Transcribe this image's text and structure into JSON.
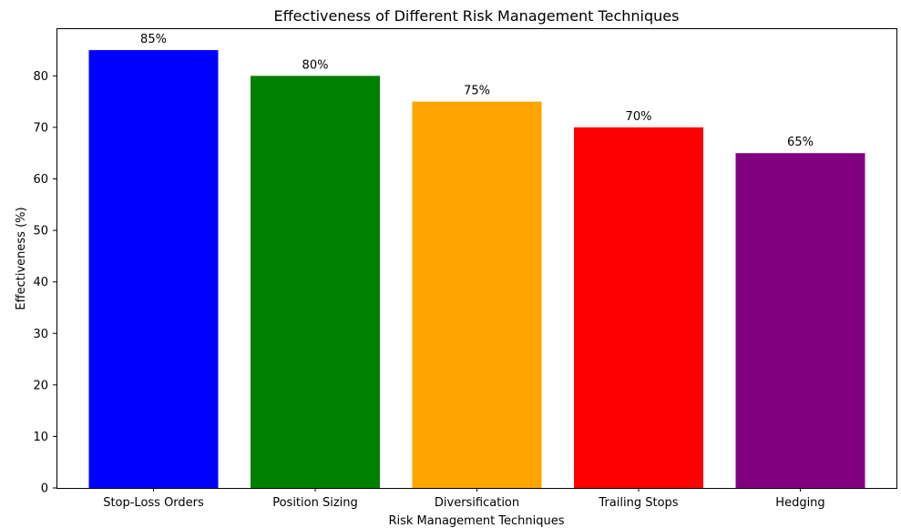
{
  "chart_data": {
    "type": "bar",
    "title": "Effectiveness of Different Risk Management Techniques",
    "xlabel": "Risk Management Techniques",
    "ylabel": "Effectiveness (%)",
    "categories": [
      "Stop-Loss Orders",
      "Position Sizing",
      "Diversification",
      "Trailing Stops",
      "Hedging"
    ],
    "values": [
      85,
      80,
      75,
      70,
      65
    ],
    "data_labels": [
      "85%",
      "80%",
      "75%",
      "70%",
      "65%"
    ],
    "colors": [
      "#0000ff",
      "#008000",
      "#ffa500",
      "#ff0000",
      "#800080"
    ],
    "ylim": [
      0,
      89.25
    ],
    "yticks": [
      0,
      10,
      20,
      30,
      40,
      50,
      60,
      70,
      80
    ],
    "grid": false,
    "legend": "none"
  }
}
